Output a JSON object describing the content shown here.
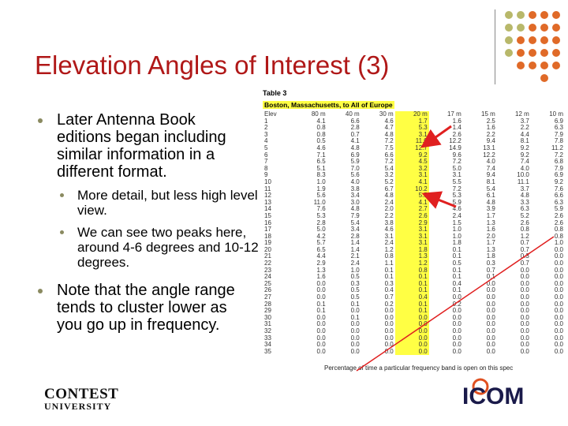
{
  "title": "Elevation Angles of Interest (3)",
  "bullets": [
    {
      "text": "Later Antenna Book editions began including similar information in a different format.",
      "sub": [
        "More detail, but less high level view.",
        "We can see two peaks here, around 4-6 degrees and 10-12 degrees."
      ]
    },
    {
      "text": "Note that the angle range tends to cluster lower as you go up in frequency."
    }
  ],
  "table": {
    "label": "Table 3",
    "caption": "Boston, Massachusetts, to All of Europe",
    "columns": [
      "Elev",
      "80 m",
      "40 m",
      "30 m",
      "20 m",
      "17 m",
      "15 m",
      "12 m",
      "10 m"
    ],
    "rows": [
      [
        "1",
        "4.1",
        "6.6",
        "4.6",
        "1.7",
        "1.6",
        "2.5",
        "3.7",
        "6.9"
      ],
      [
        "2",
        "0.8",
        "2.8",
        "4.7",
        "5.3",
        "1.4",
        "1.6",
        "2.2",
        "6.3"
      ],
      [
        "3",
        "0.8",
        "0.7",
        "4.8",
        "3.1",
        "2.6",
        "2.2",
        "4.4",
        "7.9"
      ],
      [
        "4",
        "0.5",
        "4.1",
        "7.2",
        "11.0",
        "12.2",
        "9.4",
        "8.1",
        "7.8"
      ],
      [
        "5",
        "4.6",
        "4.8",
        "7.5",
        "12.7",
        "14.9",
        "13.1",
        "9.2",
        "11.2"
      ],
      [
        "6",
        "7.1",
        "6.9",
        "6.6",
        "9.2",
        "9.6",
        "12.2",
        "9.2",
        "7.2"
      ],
      [
        "7",
        "6.5",
        "5.9",
        "7.2",
        "4.5",
        "7.2",
        "4.0",
        "7.4",
        "6.8"
      ],
      [
        "8",
        "5.1",
        "7.0",
        "5.4",
        "3.2",
        "5.0",
        "7.4",
        "4.0",
        "7.9"
      ],
      [
        "9",
        "8.3",
        "5.6",
        "3.2",
        "3.1",
        "3.1",
        "9.4",
        "10.0",
        "6.9"
      ],
      [
        "10",
        "1.0",
        "4.0",
        "5.2",
        "4.1",
        "5.5",
        "8.1",
        "11.1",
        "9.2"
      ],
      [
        "11",
        "1.9",
        "3.8",
        "6.7",
        "10.2",
        "7.2",
        "5.4",
        "3.7",
        "7.6"
      ],
      [
        "12",
        "5.6",
        "3.4",
        "4.8",
        "5.5",
        "5.3",
        "6.1",
        "4.8",
        "6.6"
      ],
      [
        "13",
        "11.0",
        "3.0",
        "2.4",
        "4.1",
        "5.9",
        "4.8",
        "3.3",
        "6.3"
      ],
      [
        "14",
        "7.6",
        "4.8",
        "2.0",
        "2.7",
        "4.6",
        "3.9",
        "6.3",
        "5.9"
      ],
      [
        "15",
        "5.3",
        "7.9",
        "2.2",
        "2.6",
        "2.4",
        "1.7",
        "5.2",
        "2.6"
      ],
      [
        "16",
        "2.8",
        "5.4",
        "3.8",
        "2.9",
        "1.5",
        "1.3",
        "2.6",
        "2.6"
      ],
      [
        "17",
        "5.0",
        "3.4",
        "4.6",
        "3.1",
        "1.0",
        "1.6",
        "0.8",
        "0.8"
      ],
      [
        "18",
        "4.2",
        "2.8",
        "3.1",
        "3.1",
        "1.0",
        "2.0",
        "1.2",
        "0.8"
      ],
      [
        "19",
        "5.7",
        "1.4",
        "2.4",
        "3.1",
        "1.8",
        "1.7",
        "0.7",
        "1.0"
      ],
      [
        "20",
        "6.5",
        "1.4",
        "1.2",
        "1.8",
        "0.1",
        "1.3",
        "0.7",
        "0.0"
      ],
      [
        "21",
        "4.4",
        "2.1",
        "0.8",
        "1.3",
        "0.1",
        "1.8",
        "0.3",
        "0.0"
      ],
      [
        "22",
        "2.9",
        "2.4",
        "1.1",
        "1.2",
        "0.5",
        "0.3",
        "0.7",
        "0.0"
      ],
      [
        "23",
        "1.3",
        "1.0",
        "0.1",
        "0.8",
        "0.1",
        "0.7",
        "0.0",
        "0.0"
      ],
      [
        "24",
        "1.6",
        "0.5",
        "0.1",
        "0.1",
        "0.1",
        "0.1",
        "0.0",
        "0.0"
      ],
      [
        "25",
        "0.0",
        "0.3",
        "0.3",
        "0.1",
        "0.4",
        "0.0",
        "0.0",
        "0.0"
      ],
      [
        "26",
        "0.0",
        "0.5",
        "0.4",
        "0.1",
        "0.1",
        "0.0",
        "0.0",
        "0.0"
      ],
      [
        "27",
        "0.0",
        "0.5",
        "0.7",
        "0.4",
        "0.0",
        "0.0",
        "0.0",
        "0.0"
      ],
      [
        "28",
        "0.1",
        "0.1",
        "0.2",
        "0.1",
        "0.2",
        "0.0",
        "0.0",
        "0.0"
      ],
      [
        "29",
        "0.1",
        "0.0",
        "0.0",
        "0.1",
        "0.0",
        "0.0",
        "0.0",
        "0.0"
      ],
      [
        "30",
        "0.0",
        "0.1",
        "0.0",
        "0.0",
        "0.0",
        "0.0",
        "0.0",
        "0.0"
      ],
      [
        "31",
        "0.0",
        "0.0",
        "0.0",
        "0.0",
        "0.0",
        "0.0",
        "0.0",
        "0.0"
      ],
      [
        "32",
        "0.0",
        "0.0",
        "0.0",
        "0.0",
        "0.0",
        "0.0",
        "0.0",
        "0.0"
      ],
      [
        "33",
        "0.0",
        "0.0",
        "0.0",
        "0.0",
        "0.0",
        "0.0",
        "0.0",
        "0.0"
      ],
      [
        "34",
        "0.0",
        "0.0",
        "0.0",
        "0.0",
        "0.0",
        "0.0",
        "0.0",
        "0.0"
      ],
      [
        "35",
        "0.0",
        "0.0",
        "0.0",
        "0.0",
        "0.0",
        "0.0",
        "0.0",
        "0.0"
      ]
    ],
    "footnote": "Percentage of time a particular frequency band is open on this spec"
  },
  "logos": [
    [
      "CONTEST",
      "UNIVERSITY"
    ],
    "ICOM"
  ]
}
